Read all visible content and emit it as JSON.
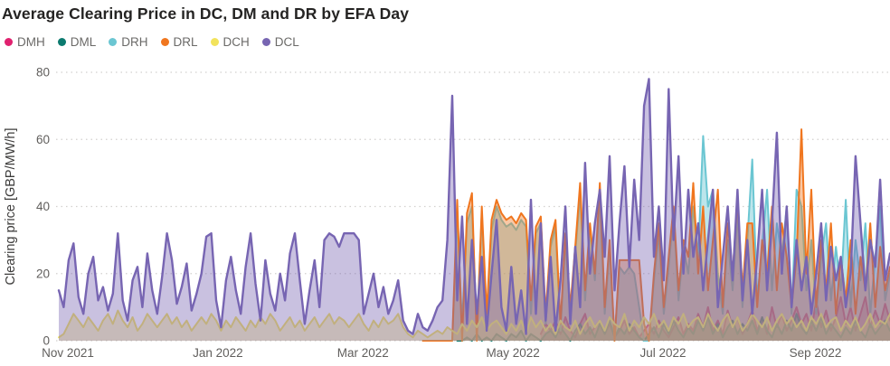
{
  "title": "Average Clearing Price in DC, DM and DR by EFA Day",
  "colors": {
    "background": "#FFFFFF",
    "title_text": "#252423",
    "axis_text": "#605E5C",
    "y_axis_title_text": "#3D3C3B",
    "gridline": "#D2D0CE"
  },
  "chart_data": {
    "type": "area",
    "title": "Average Clearing Price in DC, DM and DR by EFA Day",
    "ylabel": "Clearing price [GBP/MW/h]",
    "xlabel": "",
    "ylim": [
      0,
      80
    ],
    "y_ticks": [
      0,
      20,
      40,
      60,
      80
    ],
    "grid": "horizontal-dotted",
    "legend_position": "top-left",
    "x_axis": {
      "start_date": "2021-11-01",
      "end_day_offset": 338,
      "tick_labels": [
        "Nov 2021",
        "Jan 2022",
        "Mar 2022",
        "May 2022",
        "Jul 2022",
        "Sep 2022"
      ],
      "tick_day_offsets": [
        0,
        61,
        120,
        181,
        242,
        304
      ]
    },
    "series": [
      {
        "name": "DMH",
        "color": "#E0216F",
        "fill_opacity": 0.4,
        "start_day": 196,
        "step_days": 2,
        "values": [
          2,
          5,
          3,
          6,
          2,
          7,
          3,
          1,
          5,
          8,
          2,
          4,
          6,
          2,
          5,
          1,
          3,
          6,
          2,
          4,
          1,
          3,
          5,
          2,
          6,
          3,
          1,
          4,
          7,
          2,
          5,
          3,
          8,
          4,
          10,
          3,
          6,
          2,
          9,
          4,
          7,
          2,
          5,
          9,
          3,
          7,
          2,
          10,
          4,
          8,
          3,
          6,
          10,
          5,
          8,
          3,
          12,
          4,
          9,
          3,
          7,
          13,
          5,
          10,
          3,
          8,
          13,
          4,
          9,
          5,
          11,
          6
        ]
      },
      {
        "name": "DML",
        "color": "#0C7A6F",
        "fill_opacity": 0.4,
        "start_day": 162,
        "step_days": 2,
        "values": [
          0,
          0,
          1,
          0,
          2,
          0,
          1,
          0,
          2,
          1,
          0,
          2,
          1,
          3,
          0,
          2,
          1,
          0,
          2,
          3,
          1,
          4,
          2,
          0,
          3,
          5,
          2,
          4,
          1,
          5,
          2,
          6,
          1,
          4,
          2,
          5,
          3,
          1,
          0,
          2,
          4,
          1,
          5,
          2,
          6,
          3,
          1,
          4,
          2,
          6,
          3,
          7,
          2,
          5,
          1,
          4,
          6,
          2,
          5,
          3,
          6,
          2,
          7,
          3,
          1,
          5,
          2,
          6,
          3,
          8,
          4,
          2,
          6,
          3,
          7,
          2,
          5,
          3,
          1,
          4,
          2,
          6,
          3,
          1,
          5,
          2,
          4,
          6,
          3
        ]
      },
      {
        "name": "DRH",
        "color": "#6BC6D2",
        "fill_opacity": 0.45,
        "start_day": 148,
        "step_days": 2,
        "values": [
          0,
          0,
          0,
          0,
          0,
          0,
          0,
          37,
          5,
          35,
          40,
          3,
          38,
          5,
          33,
          40,
          36,
          34,
          35,
          33,
          36,
          34,
          8,
          32,
          35,
          5,
          28,
          34,
          3,
          30,
          8,
          26,
          44,
          12,
          33,
          18,
          44,
          8,
          28,
          0,
          22,
          20,
          22,
          20,
          10,
          0,
          0,
          18,
          32,
          8,
          22,
          38,
          12,
          28,
          20,
          40,
          25,
          61,
          40,
          45,
          20,
          8,
          30,
          15,
          38,
          10,
          30,
          54,
          12,
          28,
          45,
          15,
          35,
          25,
          40,
          8,
          45,
          40,
          15,
          30,
          8,
          25,
          35,
          12,
          28,
          15,
          42,
          10,
          30,
          18,
          35,
          8,
          25,
          40,
          12,
          20
        ]
      },
      {
        "name": "DRL",
        "color": "#F0761F",
        "fill_opacity": 0.4,
        "start_day": 148,
        "step_days": 2,
        "values": [
          0,
          0,
          0,
          0,
          0,
          0,
          0,
          42,
          0,
          38,
          44,
          0,
          40,
          8,
          36,
          42,
          38,
          36,
          37,
          35,
          38,
          36,
          12,
          34,
          37,
          8,
          30,
          36,
          5,
          32,
          10,
          28,
          47,
          15,
          35,
          20,
          47,
          10,
          30,
          0,
          24,
          24,
          24,
          24,
          24,
          5,
          0,
          20,
          35,
          10,
          25,
          40,
          15,
          30,
          25,
          47,
          20,
          40,
          15,
          30,
          45,
          10,
          35,
          20,
          42,
          15,
          35,
          35,
          10,
          30,
          20,
          40,
          15,
          35,
          25,
          10,
          25,
          63,
          20,
          45,
          10,
          30,
          15,
          35,
          8,
          25,
          12,
          30,
          8,
          25,
          15,
          35,
          10,
          28,
          15,
          22
        ]
      },
      {
        "name": "DCH",
        "color": "#F2E35C",
        "fill_opacity": 0.4,
        "start_day": 0,
        "step_days": 2,
        "values": [
          1,
          2,
          5,
          8,
          6,
          4,
          7,
          5,
          3,
          6,
          8,
          5,
          9,
          6,
          4,
          7,
          3,
          5,
          8,
          6,
          4,
          6,
          8,
          5,
          7,
          4,
          6,
          3,
          5,
          7,
          5,
          8,
          6,
          3,
          6,
          4,
          7,
          5,
          3,
          6,
          4,
          7,
          5,
          8,
          6,
          3,
          5,
          7,
          4,
          6,
          3,
          5,
          7,
          4,
          6,
          8,
          5,
          7,
          6,
          4,
          6,
          8,
          5,
          3,
          6,
          4,
          7,
          5,
          6,
          8,
          4,
          2,
          1,
          3,
          2,
          1,
          2,
          3,
          2,
          4,
          3,
          2,
          5,
          3,
          6,
          4,
          7,
          3,
          5,
          6,
          4,
          2,
          5,
          3,
          6,
          2,
          7,
          4,
          6,
          3,
          5,
          2,
          6,
          4,
          3,
          6,
          2,
          5,
          7,
          4,
          6,
          3,
          7,
          5,
          4,
          8,
          3,
          6,
          4,
          7,
          5,
          8,
          4,
          6,
          3,
          7,
          5,
          8,
          4,
          6,
          7,
          4,
          8,
          5,
          3,
          6,
          8,
          4,
          7,
          3,
          5,
          8,
          6,
          4,
          7,
          3,
          6,
          8,
          5,
          7,
          4,
          6,
          3,
          7,
          5,
          8,
          4,
          6,
          7,
          3,
          6,
          4,
          7,
          3,
          5,
          8,
          4,
          6,
          5,
          8
        ]
      },
      {
        "name": "DCL",
        "color": "#7765B2",
        "fill_opacity": 0.4,
        "start_day": 0,
        "step_days": 2,
        "values": [
          15,
          10,
          24,
          29,
          13,
          8,
          20,
          25,
          12,
          16,
          9,
          14,
          32,
          12,
          6,
          18,
          22,
          10,
          26,
          15,
          8,
          19,
          32,
          24,
          11,
          16,
          23,
          9,
          14,
          20,
          31,
          32,
          12,
          4,
          18,
          25,
          15,
          8,
          22,
          32,
          17,
          6,
          24,
          14,
          9,
          20,
          12,
          26,
          32,
          18,
          5,
          15,
          24,
          10,
          30,
          32,
          31,
          28,
          32,
          32,
          32,
          30,
          8,
          14,
          20,
          10,
          16,
          8,
          12,
          18,
          6,
          3,
          2,
          8,
          4,
          3,
          6,
          10,
          12,
          30,
          73,
          12,
          37,
          5,
          30,
          8,
          25,
          3,
          20,
          36,
          10,
          3,
          22,
          5,
          15,
          2,
          42,
          8,
          35,
          6,
          25,
          3,
          18,
          40,
          5,
          28,
          10,
          53,
          20,
          35,
          45,
          25,
          55,
          15,
          35,
          52,
          22,
          48,
          30,
          70,
          78,
          25,
          40,
          18,
          75,
          30,
          55,
          20,
          45,
          25,
          35,
          15,
          30,
          45,
          10,
          25,
          40,
          18,
          45,
          12,
          30,
          8,
          25,
          45,
          15,
          35,
          62,
          20,
          40,
          10,
          30,
          15,
          25,
          8,
          20,
          35,
          12,
          28,
          18,
          25,
          10,
          20,
          55,
          35,
          15,
          30,
          22,
          48,
          18,
          26
        ]
      }
    ]
  }
}
